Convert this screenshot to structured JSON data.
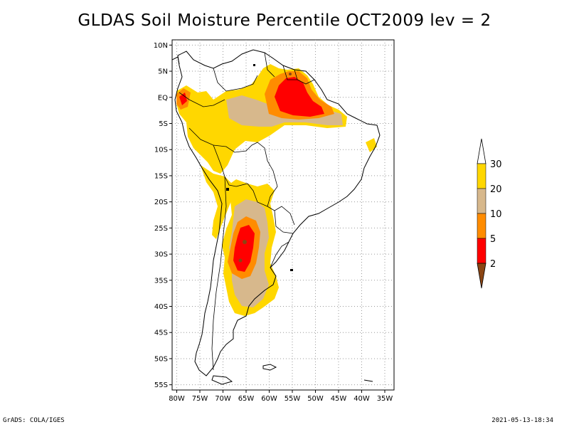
{
  "title": "GLDAS Soil Moisture Percentile OCT2009 lev = 2",
  "map": {
    "lat_labels": [
      "10N",
      "5N",
      "EQ",
      "5S",
      "10S",
      "15S",
      "20S",
      "25S",
      "30S",
      "35S",
      "40S",
      "45S",
      "50S",
      "55S"
    ],
    "lon_labels": [
      "80W",
      "75W",
      "70W",
      "65W",
      "60W",
      "55W",
      "50W",
      "45W",
      "40W",
      "35W"
    ],
    "lat_range": [
      -56,
      11
    ],
    "lon_range": [
      -81,
      -33
    ],
    "grid": "dotted"
  },
  "legend": {
    "levels": [
      "30",
      "20",
      "10",
      "5",
      "2"
    ],
    "colors": {
      "above_30": "#ffffff",
      "20_30": "#ffd700",
      "10_20": "#d7b88c",
      "5_10": "#ff8c00",
      "2_5": "#ff0000",
      "below_2": "#8b4513"
    }
  },
  "footer": {
    "left": "GrADS: COLA/IGES",
    "right": "2021-05-13-18:34"
  }
}
